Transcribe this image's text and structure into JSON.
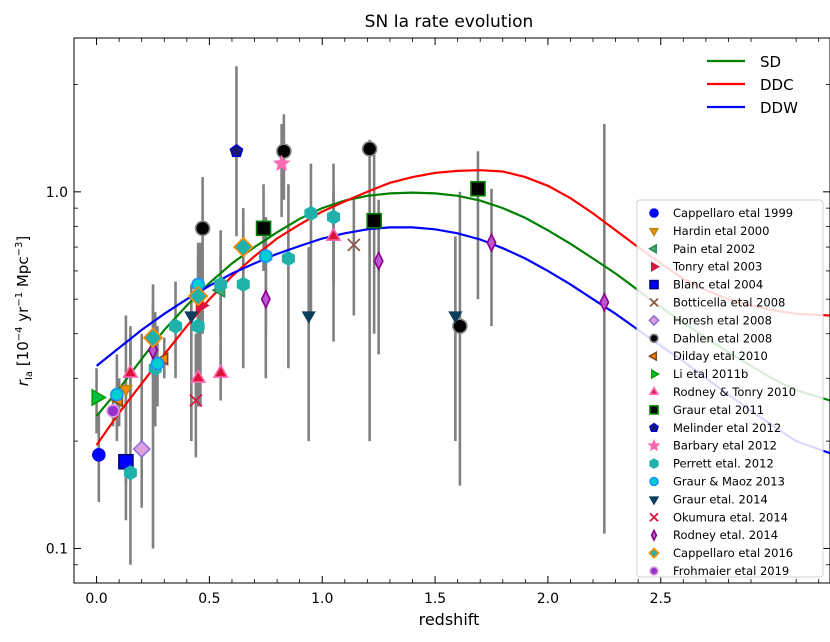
{
  "chart_data": {
    "type": "scatter",
    "title": "SN Ia rate evolution",
    "xlabel": "redshift",
    "ylabel": "r_Ia [10^-4 yr^-1 Mpc^-3]",
    "ylabel_main": "r",
    "ylabel_sub": "Ia",
    "ylabel_unit_open": "  [10",
    "ylabel_exp1": "−4",
    "ylabel_unit_mid": " yr",
    "ylabel_exp2": "−1",
    "ylabel_unit_mid2": " Mpc",
    "ylabel_exp3": "−3",
    "ylabel_unit_close": "]",
    "x_scale": "linear",
    "y_scale": "log",
    "xlim": [
      -0.1,
      3.25
    ],
    "ylim": [
      0.08,
      2.7
    ],
    "xticks": [
      "0.0",
      "0.5",
      "1.0",
      "1.5",
      "2.0",
      "2.5"
    ],
    "xtick_values": [
      0,
      0.5,
      1,
      1.5,
      2,
      2.5
    ],
    "yticks": [
      "0.1",
      "1.0"
    ],
    "ytick_values": [
      0.1,
      1.0
    ],
    "models": [
      {
        "name": "SD",
        "color": "#008000",
        "x": [
          0,
          0.1,
          0.2,
          0.3,
          0.4,
          0.5,
          0.6,
          0.7,
          0.8,
          0.9,
          1.0,
          1.1,
          1.2,
          1.3,
          1.4,
          1.5,
          1.6,
          1.7,
          1.8,
          1.9,
          2.0,
          2.1,
          2.2,
          2.3,
          2.4,
          2.5,
          2.6,
          2.7,
          2.8,
          2.9,
          3.0,
          3.1,
          3.25
        ],
        "y": [
          0.235,
          0.28,
          0.34,
          0.41,
          0.48,
          0.555,
          0.63,
          0.7,
          0.77,
          0.84,
          0.9,
          0.945,
          0.975,
          0.99,
          0.995,
          0.99,
          0.975,
          0.945,
          0.9,
          0.845,
          0.78,
          0.715,
          0.65,
          0.59,
          0.53,
          0.475,
          0.43,
          0.39,
          0.355,
          0.325,
          0.298,
          0.278,
          0.26
        ]
      },
      {
        "name": "DDC",
        "color": "#ff0000",
        "x": [
          0,
          0.1,
          0.2,
          0.3,
          0.4,
          0.5,
          0.6,
          0.7,
          0.8,
          0.9,
          1.0,
          1.1,
          1.2,
          1.3,
          1.4,
          1.5,
          1.6,
          1.7,
          1.8,
          1.9,
          2.0,
          2.1,
          2.2,
          2.3,
          2.4,
          2.5,
          2.6,
          2.7,
          2.8,
          2.9,
          3.0,
          3.1,
          3.25
        ],
        "y": [
          0.195,
          0.24,
          0.29,
          0.35,
          0.42,
          0.5,
          0.58,
          0.66,
          0.74,
          0.81,
          0.88,
          0.94,
          1.0,
          1.06,
          1.1,
          1.13,
          1.145,
          1.15,
          1.14,
          1.1,
          1.04,
          0.96,
          0.87,
          0.78,
          0.7,
          0.63,
          0.57,
          0.53,
          0.5,
          0.48,
          0.465,
          0.455,
          0.45
        ]
      },
      {
        "name": "DDW",
        "color": "#0000ff",
        "x": [
          0,
          0.1,
          0.2,
          0.3,
          0.4,
          0.5,
          0.6,
          0.7,
          0.8,
          0.9,
          1.0,
          1.1,
          1.2,
          1.3,
          1.4,
          1.5,
          1.6,
          1.7,
          1.8,
          1.9,
          2.0,
          2.1,
          2.2,
          2.3,
          2.4,
          2.5,
          2.6,
          2.7,
          2.8,
          2.9,
          3.0,
          3.1,
          3.25
        ],
        "y": [
          0.325,
          0.365,
          0.41,
          0.455,
          0.5,
          0.545,
          0.59,
          0.63,
          0.67,
          0.705,
          0.74,
          0.765,
          0.785,
          0.795,
          0.795,
          0.785,
          0.765,
          0.735,
          0.695,
          0.65,
          0.6,
          0.55,
          0.5,
          0.455,
          0.41,
          0.37,
          0.335,
          0.3,
          0.27,
          0.243,
          0.22,
          0.2,
          0.185
        ]
      }
    ],
    "surveys": [
      {
        "name": "Cappellaro etal 1999",
        "marker": "circle",
        "color": "#0000ff",
        "edge": "#0000ff",
        "size": 6,
        "points": [
          {
            "x": 0.01,
            "y": 0.183,
            "lo": 0.135,
            "hi": 0.24
          }
        ]
      },
      {
        "name": "Hardin etal 2000",
        "marker": "tri-down",
        "color": "#ff8c00",
        "edge": "#b8860b",
        "size": 6,
        "points": [
          {
            "x": 0.13,
            "y": 0.28,
            "lo": 0.15,
            "hi": 0.45
          }
        ]
      },
      {
        "name": "Pain etal 2002",
        "marker": "tri-left",
        "color": "#3cb371",
        "edge": "#2e8b57",
        "size": 7,
        "points": [
          {
            "x": 0.55,
            "y": 0.53,
            "lo": 0.4,
            "hi": 0.65
          }
        ]
      },
      {
        "name": "Tonry etal 2003",
        "marker": "tri-right",
        "color": "#dc143c",
        "edge": "#dc143c",
        "size": 7,
        "points": [
          {
            "x": 0.46,
            "y": 0.48,
            "lo": 0.25,
            "hi": 0.72
          }
        ]
      },
      {
        "name": "Blanc etal 2004",
        "marker": "square",
        "color": "#0000ff",
        "edge": "#000080",
        "size": 7,
        "points": [
          {
            "x": 0.13,
            "y": 0.175,
            "lo": 0.12,
            "hi": 0.26
          }
        ]
      },
      {
        "name": "Botticella etal 2008",
        "marker": "x",
        "color": "#8b5a4a",
        "edge": "#8b5a4a",
        "size": 6,
        "points": [
          {
            "x": 1.14,
            "y": 0.71,
            "lo": 0.45,
            "hi": 0.95
          }
        ]
      },
      {
        "name": "Horesh etal 2008",
        "marker": "diamond",
        "color": "#dda0dd",
        "edge": "#9370db",
        "size": 7,
        "points": [
          {
            "x": 0.2,
            "y": 0.19,
            "lo": 0.13,
            "hi": 0.4
          }
        ]
      },
      {
        "name": "Dahlen etal 2008",
        "marker": "circle",
        "color": "#000000",
        "edge": "#888888",
        "size": 7,
        "points": [
          {
            "x": 0.47,
            "y": 0.79,
            "lo": 0.4,
            "hi": 1.1
          },
          {
            "x": 0.83,
            "y": 1.3,
            "lo": 0.95,
            "hi": 1.65
          },
          {
            "x": 1.21,
            "y": 1.32,
            "lo": 0.2,
            "hi": 1.4
          },
          {
            "x": 1.61,
            "y": 0.42,
            "lo": 0.15,
            "hi": 1.0
          }
        ]
      },
      {
        "name": "Dilday etal 2010",
        "marker": "tri-left",
        "color": "#ff8c00",
        "edge": "#8b4513",
        "size": 6,
        "points": [
          {
            "x": 0.1,
            "y": 0.26,
            "lo": 0.22,
            "hi": 0.3
          },
          {
            "x": 0.3,
            "y": 0.34,
            "lo": 0.3,
            "hi": 0.39
          }
        ]
      },
      {
        "name": "Li etal 2011b",
        "marker": "tri-right",
        "color": "#00c040",
        "edge": "#00a000",
        "size": 8,
        "points": [
          {
            "x": 0.0,
            "y": 0.265,
            "lo": 0.21,
            "hi": 0.32
          }
        ]
      },
      {
        "name": "Rodney & Tonry 2010",
        "marker": "tri-up",
        "color": "#dc143c",
        "edge": "#ff69b4",
        "size": 7,
        "points": [
          {
            "x": 0.15,
            "y": 0.31,
            "lo": 0.2,
            "hi": 0.42
          },
          {
            "x": 0.45,
            "y": 0.3,
            "lo": 0.25,
            "hi": 0.4
          },
          {
            "x": 0.55,
            "y": 0.31,
            "lo": 0.26,
            "hi": 0.38
          },
          {
            "x": 1.05,
            "y": 0.75,
            "lo": 0.55,
            "hi": 1.0
          }
        ]
      },
      {
        "name": "Graur etal 2011",
        "marker": "square",
        "color": "#000000",
        "edge": "#008000",
        "size": 7,
        "points": [
          {
            "x": 0.74,
            "y": 0.79,
            "lo": 0.6,
            "hi": 1.05
          },
          {
            "x": 1.23,
            "y": 0.83,
            "lo": 0.4,
            "hi": 1.3
          },
          {
            "x": 1.69,
            "y": 1.02,
            "lo": 0.5,
            "hi": 1.3
          }
        ]
      },
      {
        "name": "Melinder etal 2012",
        "marker": "pentagon",
        "color": "#191970",
        "edge": "#0000cd",
        "size": 6,
        "points": [
          {
            "x": 0.62,
            "y": 1.3,
            "lo": 0.75,
            "hi": 2.25
          }
        ]
      },
      {
        "name": "Barbary etal 2012",
        "marker": "star",
        "color": "#ff69b4",
        "edge": "#ff69b4",
        "size": 6,
        "points": [
          {
            "x": 0.82,
            "y": 1.2,
            "lo": 0.85,
            "hi": 1.55
          }
        ]
      },
      {
        "name": "Perrett etal. 2012",
        "marker": "hexagon",
        "color": "#20b2aa",
        "edge": "#20b2aa",
        "size": 6,
        "points": [
          {
            "x": 0.15,
            "y": 0.163,
            "lo": 0.09,
            "hi": 0.4
          },
          {
            "x": 0.26,
            "y": 0.32,
            "lo": 0.22,
            "hi": 0.46
          },
          {
            "x": 0.35,
            "y": 0.42,
            "lo": 0.3,
            "hi": 0.56
          },
          {
            "x": 0.45,
            "y": 0.42,
            "lo": 0.3,
            "hi": 0.55
          },
          {
            "x": 0.55,
            "y": 0.55,
            "lo": 0.32,
            "hi": 0.78
          },
          {
            "x": 0.65,
            "y": 0.55,
            "lo": 0.32,
            "hi": 0.82
          },
          {
            "x": 0.75,
            "y": 0.66,
            "lo": 0.42,
            "hi": 0.85
          },
          {
            "x": 0.85,
            "y": 0.65,
            "lo": 0.32,
            "hi": 1.05
          },
          {
            "x": 0.95,
            "y": 0.87,
            "lo": 0.45,
            "hi": 1.2
          },
          {
            "x": 1.05,
            "y": 0.85,
            "lo": 0.38,
            "hi": 1.2
          }
        ]
      },
      {
        "name": "Graur & Maoz 2013",
        "marker": "circle",
        "color": "#00ced1",
        "edge": "#1e90ff",
        "size": 6,
        "points": [
          {
            "x": 0.09,
            "y": 0.27,
            "lo": 0.2,
            "hi": 0.35
          },
          {
            "x": 0.27,
            "y": 0.33,
            "lo": 0.25,
            "hi": 0.42
          },
          {
            "x": 0.45,
            "y": 0.55,
            "lo": 0.3,
            "hi": 0.72
          },
          {
            "x": 0.75,
            "y": 0.66,
            "lo": 0.4,
            "hi": 0.8
          }
        ]
      },
      {
        "name": "Graur etal. 2014",
        "marker": "tri-down",
        "color": "#0b3d5c",
        "edge": "#0b3d5c",
        "size": 6,
        "points": [
          {
            "x": 0.42,
            "y": 0.45,
            "lo": 0.2,
            "hi": 0.55
          },
          {
            "x": 0.94,
            "y": 0.45,
            "lo": 0.2,
            "hi": 0.7
          },
          {
            "x": 1.59,
            "y": 0.45,
            "lo": 0.2,
            "hi": 0.75
          }
        ]
      },
      {
        "name": "Okumura etal. 2014",
        "marker": "x",
        "color": "#dc143c",
        "edge": "#dc143c",
        "size": 6,
        "points": [
          {
            "x": 0.44,
            "y": 0.26,
            "lo": 0.18,
            "hi": 0.4
          }
        ]
      },
      {
        "name": "Rodney etal. 2014",
        "marker": "thin-diamond",
        "color": "#ba55d3",
        "edge": "#8b008b",
        "size": 7,
        "points": [
          {
            "x": 0.25,
            "y": 0.36,
            "lo": 0.1,
            "hi": 0.55
          },
          {
            "x": 0.75,
            "y": 0.5,
            "lo": 0.3,
            "hi": 0.7
          },
          {
            "x": 1.25,
            "y": 0.64,
            "lo": 0.35,
            "hi": 0.95
          },
          {
            "x": 1.75,
            "y": 0.72,
            "lo": 0.42,
            "hi": 1.02
          },
          {
            "x": 2.25,
            "y": 0.49,
            "lo": 0.11,
            "hi": 1.55
          }
        ]
      },
      {
        "name": "Cappellaro etal 2016",
        "marker": "diamond",
        "color": "#20b2aa",
        "edge": "#ff8c00",
        "size": 8,
        "points": [
          {
            "x": 0.25,
            "y": 0.39,
            "lo": 0.3,
            "hi": 0.48
          },
          {
            "x": 0.45,
            "y": 0.51,
            "lo": 0.4,
            "hi": 0.66
          },
          {
            "x": 0.65,
            "y": 0.7,
            "lo": 0.55,
            "hi": 0.9
          }
        ]
      },
      {
        "name": "Frohmaier etal 2019",
        "marker": "circle",
        "color": "#9932cc",
        "edge": "#dda0dd",
        "size": 6,
        "points": [
          {
            "x": 0.073,
            "y": 0.243,
            "lo": 0.22,
            "hi": 0.27
          }
        ]
      }
    ],
    "legend_models_position": "top-right",
    "legend_surveys_position": "bottom-right"
  }
}
